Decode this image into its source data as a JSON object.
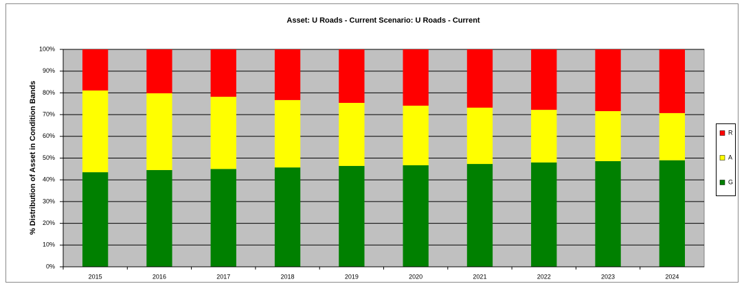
{
  "chart_data": {
    "type": "stacked_bar",
    "title": "Asset: U Roads - Current Scenario: U Roads - Current",
    "y_label": "% Distribution of Asset in Condition Bands",
    "categories": [
      "2015",
      "2016",
      "2017",
      "2018",
      "2019",
      "2020",
      "2021",
      "2022",
      "2023",
      "2024"
    ],
    "series": [
      {
        "name": "G",
        "color": "#008000",
        "values": [
          43.5,
          44.5,
          45,
          45.7,
          46.4,
          46.7,
          47.3,
          48,
          48.6,
          49
        ]
      },
      {
        "name": "A",
        "color": "#ffff00",
        "values": [
          37.6,
          35.3,
          33.2,
          31,
          29,
          27.4,
          25.9,
          24.2,
          23,
          21.7
        ]
      },
      {
        "name": "R",
        "color": "#ff0000",
        "values": [
          18.9,
          20.2,
          21.8,
          23.3,
          24.6,
          25.9,
          26.8,
          27.8,
          28.4,
          29.3
        ]
      }
    ],
    "ylim": [
      0,
      100
    ],
    "yticks": [
      {
        "value": 0,
        "label": "0%"
      },
      {
        "value": 10,
        "label": "10%"
      },
      {
        "value": 20,
        "label": "20%"
      },
      {
        "value": 30,
        "label": "30%"
      },
      {
        "value": 40,
        "label": "40%"
      },
      {
        "value": 50,
        "label": "50%"
      },
      {
        "value": 60,
        "label": "60%"
      },
      {
        "value": 70,
        "label": "70%"
      },
      {
        "value": 80,
        "label": "80%"
      },
      {
        "value": 90,
        "label": "90%"
      },
      {
        "value": 100,
        "label": "100%"
      }
    ],
    "grid": true,
    "legend": "right"
  }
}
